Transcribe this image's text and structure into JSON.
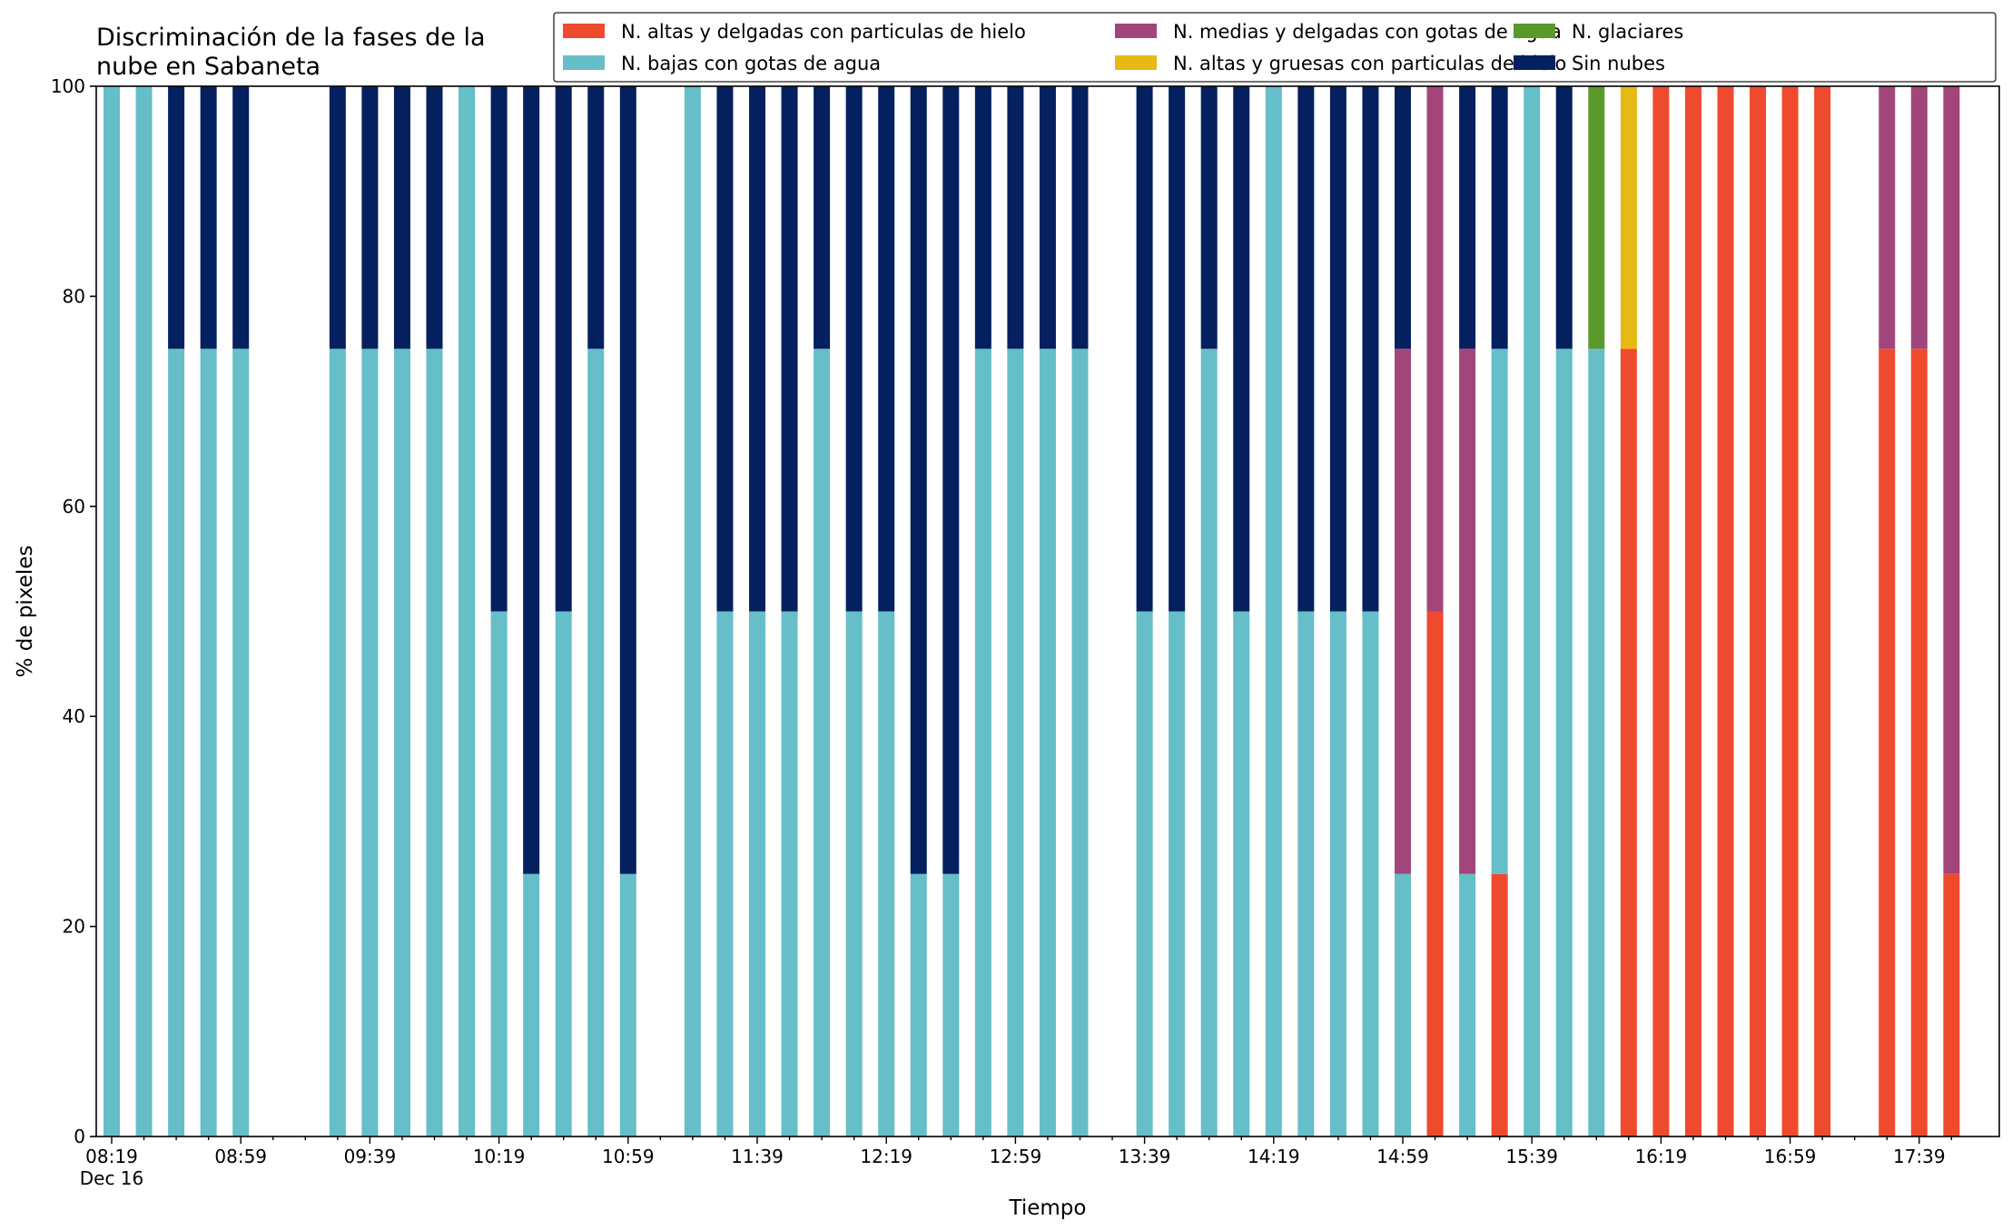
{
  "chart_data": {
    "type": "bar",
    "stacked": true,
    "title_lines": [
      "Discriminación de la fases de la",
      "nube en Sabaneta"
    ],
    "xlabel": "Tiempo",
    "ylabel": "% de pixeles",
    "ylim": [
      0,
      100
    ],
    "yticks": [
      0,
      20,
      40,
      60,
      80,
      100
    ],
    "xtick_labels": [
      {
        "slot": 0,
        "label": "08:19",
        "sub": "Dec 16"
      },
      {
        "slot": 4,
        "label": "08:59"
      },
      {
        "slot": 8,
        "label": "09:39"
      },
      {
        "slot": 12,
        "label": "10:19"
      },
      {
        "slot": 16,
        "label": "10:59"
      },
      {
        "slot": 20,
        "label": "11:39"
      },
      {
        "slot": 24,
        "label": "12:19"
      },
      {
        "slot": 28,
        "label": "12:59"
      },
      {
        "slot": 32,
        "label": "13:39"
      },
      {
        "slot": 36,
        "label": "14:19"
      },
      {
        "slot": 40,
        "label": "14:59"
      },
      {
        "slot": 44,
        "label": "15:39"
      },
      {
        "slot": 48,
        "label": "16:19"
      },
      {
        "slot": 52,
        "label": "16:59"
      },
      {
        "slot": 56,
        "label": "17:39"
      }
    ],
    "slots": 58,
    "bar_slots": [
      0,
      1,
      2,
      3,
      4,
      7,
      8,
      9,
      10,
      11,
      12,
      13,
      14,
      15,
      16,
      18,
      19,
      20,
      21,
      22,
      23,
      24,
      25,
      26,
      27,
      28,
      29,
      30,
      32,
      33,
      34,
      35,
      36,
      37,
      38,
      39,
      40,
      41,
      42,
      43,
      44,
      45,
      46,
      47,
      48,
      49,
      50,
      51,
      52,
      53,
      55,
      56,
      57
    ],
    "legend_position": "top-right",
    "series": [
      {
        "name": "N. altas y delgadas con particulas de hielo",
        "color": "#ee4a2d",
        "values": [
          0,
          0,
          0,
          0,
          0,
          0,
          0,
          0,
          0,
          0,
          0,
          0,
          0,
          0,
          0,
          0,
          0,
          0,
          0,
          0,
          0,
          0,
          0,
          0,
          0,
          0,
          0,
          0,
          0,
          0,
          0,
          0,
          0,
          0,
          0,
          0,
          0,
          50,
          0,
          25,
          0,
          0,
          0,
          75,
          100,
          100,
          100,
          100,
          100,
          100,
          75,
          75,
          25
        ]
      },
      {
        "name": "N. altas y gruesas con particulas de hielo",
        "color": "#e6b914",
        "values": [
          0,
          0,
          0,
          0,
          0,
          0,
          0,
          0,
          0,
          0,
          0,
          0,
          0,
          0,
          0,
          0,
          0,
          0,
          0,
          0,
          0,
          0,
          0,
          0,
          0,
          0,
          0,
          0,
          0,
          0,
          0,
          0,
          0,
          0,
          0,
          0,
          0,
          0,
          0,
          0,
          0,
          0,
          0,
          25,
          0,
          0,
          0,
          0,
          0,
          0,
          0,
          0,
          0
        ]
      },
      {
        "name": "N. bajas con gotas de agua",
        "color": "#66bec8",
        "values": [
          100,
          100,
          75,
          75,
          75,
          75,
          75,
          75,
          75,
          100,
          50,
          25,
          50,
          75,
          25,
          100,
          50,
          50,
          50,
          75,
          50,
          50,
          25,
          25,
          75,
          75,
          75,
          75,
          50,
          50,
          75,
          50,
          100,
          50,
          50,
          50,
          25,
          0,
          25,
          50,
          100,
          75,
          75,
          0,
          0,
          0,
          0,
          0,
          0,
          0,
          0,
          0,
          0
        ]
      },
      {
        "name": "N. glaciares",
        "color": "#5a9a2a",
        "values": [
          0,
          0,
          0,
          0,
          0,
          0,
          0,
          0,
          0,
          0,
          0,
          0,
          0,
          0,
          0,
          0,
          0,
          0,
          0,
          0,
          0,
          0,
          0,
          0,
          0,
          0,
          0,
          0,
          0,
          0,
          0,
          0,
          0,
          0,
          0,
          0,
          0,
          0,
          0,
          0,
          0,
          0,
          25,
          0,
          0,
          0,
          0,
          0,
          0,
          0,
          0,
          0,
          0
        ]
      },
      {
        "name": "N. medias y delgadas con gotas de agua",
        "color": "#a2457a",
        "values": [
          0,
          0,
          0,
          0,
          0,
          0,
          0,
          0,
          0,
          0,
          0,
          0,
          0,
          0,
          0,
          0,
          0,
          0,
          0,
          0,
          0,
          0,
          0,
          0,
          0,
          0,
          0,
          0,
          0,
          0,
          0,
          0,
          0,
          0,
          0,
          0,
          50,
          50,
          50,
          0,
          0,
          0,
          0,
          0,
          0,
          0,
          0,
          0,
          0,
          0,
          25,
          25,
          75
        ]
      },
      {
        "name": "Sin nubes",
        "color": "#04205e",
        "values": [
          0,
          0,
          25,
          25,
          25,
          25,
          25,
          25,
          25,
          0,
          50,
          75,
          50,
          25,
          75,
          0,
          50,
          50,
          50,
          25,
          50,
          50,
          75,
          75,
          25,
          25,
          25,
          25,
          50,
          50,
          25,
          50,
          0,
          50,
          50,
          50,
          25,
          0,
          25,
          25,
          0,
          25,
          0,
          0,
          0,
          0,
          0,
          0,
          0,
          0,
          0,
          0,
          0
        ]
      }
    ],
    "legend_order": [
      0,
      2,
      4,
      1,
      3,
      5
    ]
  }
}
